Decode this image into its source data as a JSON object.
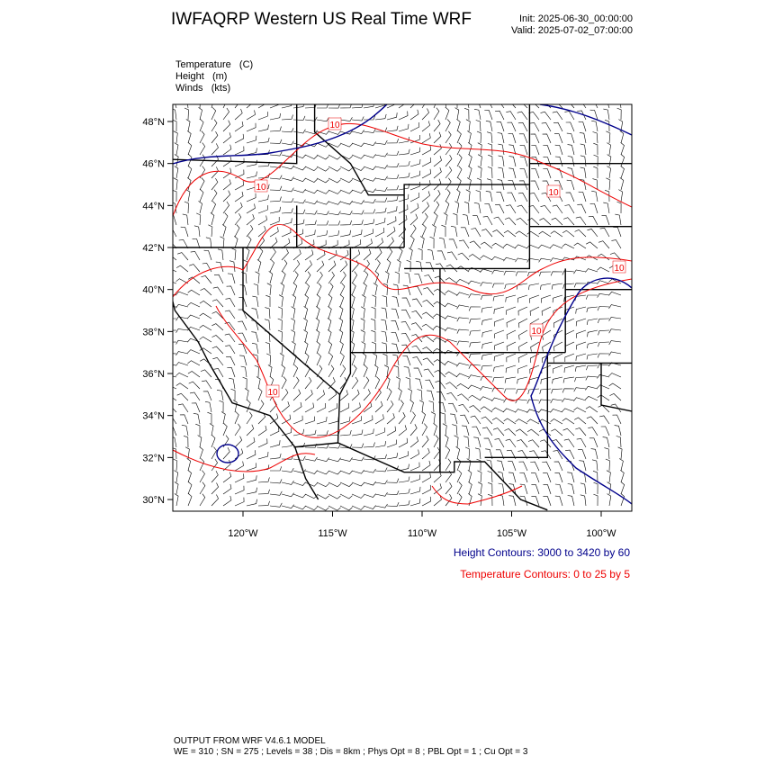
{
  "header": {
    "title": "IWFAQRP Western US Real Time WRF",
    "init": "Init: 2025-06-30_00:00:00",
    "valid": "Valid: 2025-07-02_07:00:00"
  },
  "fields": [
    "Temperature   (C)",
    "Height   (m)",
    "Winds   (kts)"
  ],
  "map": {
    "lat_labels": [
      "48°N",
      "46°N",
      "44°N",
      "42°N",
      "40°N",
      "38°N",
      "36°N",
      "34°N",
      "32°N",
      "30°N"
    ],
    "lon_labels": [
      "120°W",
      "115°W",
      "110°W",
      "105°W",
      "100°W"
    ],
    "contour_labels": [
      "10",
      "10",
      "10",
      "10",
      "10",
      "10"
    ]
  },
  "legend": {
    "height": "Height Contours: 3000 to 3420 by 60",
    "temperature": "Temperature Contours: 0 to 25 by 5"
  },
  "footer": [
    "OUTPUT FROM WRF V4.6.1 MODEL",
    "WE = 310 ; SN = 275 ; Levels = 38 ; Dis = 8km ; Phys Opt = 8 ; PBL Opt = 1 ; Cu Opt = 3"
  ]
}
